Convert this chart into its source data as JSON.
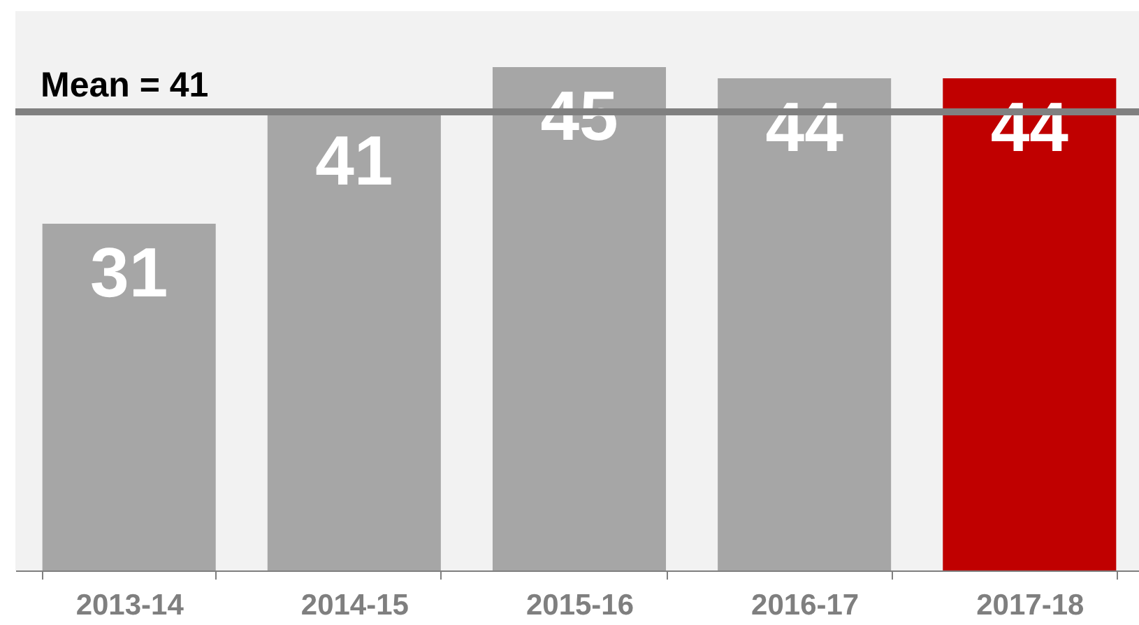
{
  "chart_data": {
    "type": "bar",
    "categories": [
      "2013-14",
      "2014-15",
      "2015-16",
      "2016-17",
      "2017-18"
    ],
    "values": [
      31,
      41,
      45,
      44,
      44
    ],
    "colors": [
      "#a6a6a6",
      "#a6a6a6",
      "#a6a6a6",
      "#a6a6a6",
      "#c00000"
    ],
    "ylim": [
      0,
      50
    ],
    "tick_labels": "x",
    "data_labels": true,
    "ref_lines": [
      {
        "axis": "y",
        "value": 41,
        "label": "Mean = 41",
        "color": "#808080"
      }
    ]
  }
}
